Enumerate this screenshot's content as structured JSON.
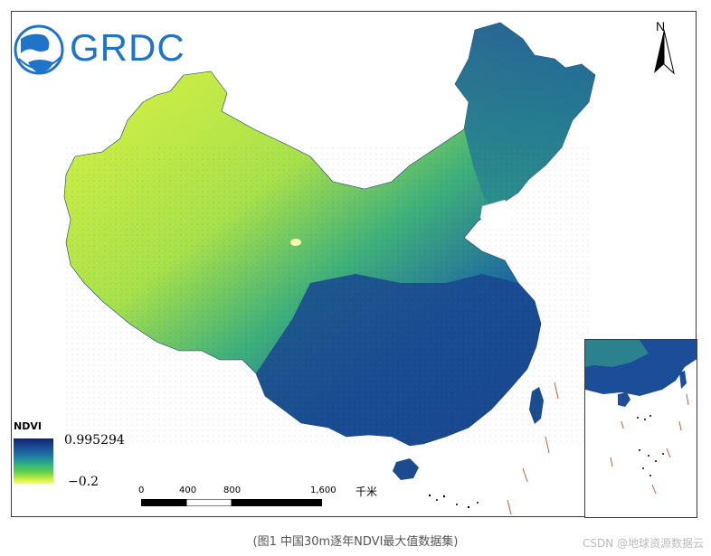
{
  "logo": {
    "text": "GRDC"
  },
  "north_arrow": {
    "label": "N"
  },
  "legend": {
    "title": "NDVI",
    "max_label": "0.995294",
    "min_label": "−0.2",
    "colors": [
      "#11216c",
      "#1c4d98",
      "#1f7ba4",
      "#2fb47f",
      "#66d04a",
      "#d6f247",
      "#f4f98a"
    ]
  },
  "scale_bar": {
    "ticks": [
      "0",
      "400",
      "800",
      "1,600"
    ],
    "unit": "千米"
  },
  "caption": "(图1 中国30m逐年NDVI最大值数据集)",
  "watermark": "CSDN @地球资源数据云"
}
